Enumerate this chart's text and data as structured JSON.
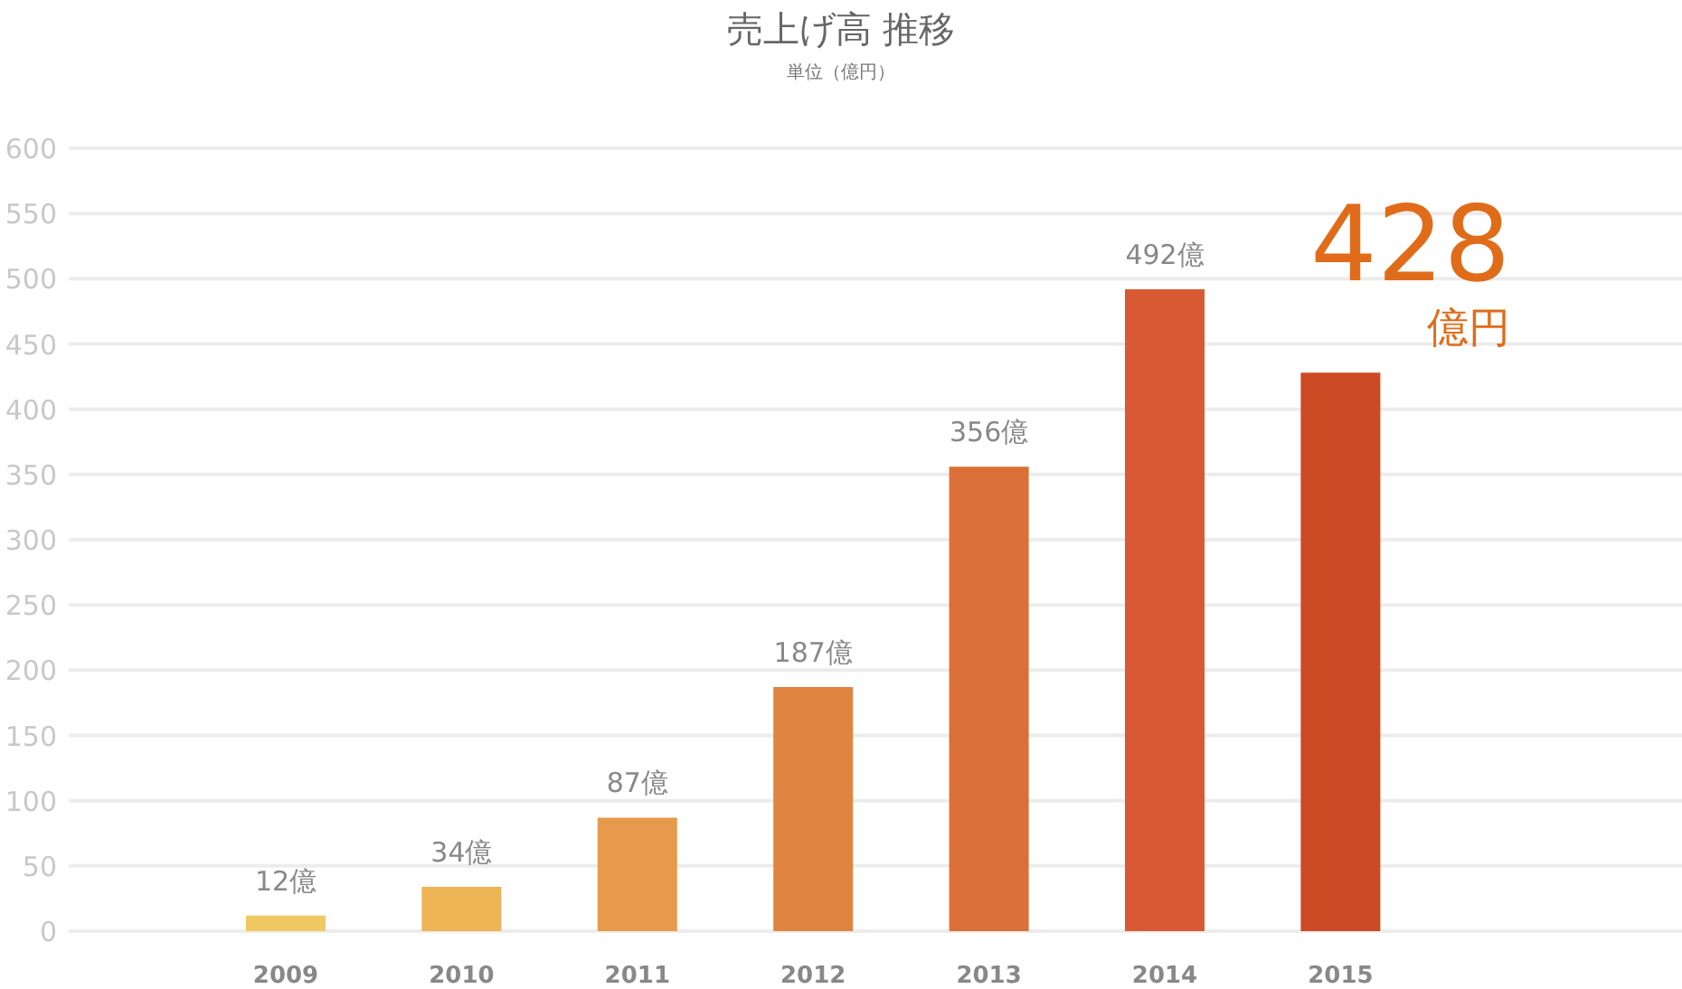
{
  "chart_data": {
    "type": "bar",
    "title": "売上げ高 推移",
    "subtitle": "単位（億円）",
    "categories": [
      "2009",
      "2010",
      "2011",
      "2012",
      "2013",
      "2014",
      "2015"
    ],
    "values": [
      12,
      34,
      87,
      187,
      356,
      492,
      428
    ],
    "colors": [
      "#f0c862",
      "#ecb455",
      "#e79a4c",
      "#e08441",
      "#da7037",
      "#d85a32",
      "#cc4a23"
    ],
    "value_labels": [
      "12億",
      "34億",
      "87億",
      "187億",
      "356億",
      "492億",
      "428億円"
    ],
    "ylim": [
      0,
      600
    ],
    "yticks": [
      0,
      50,
      100,
      150,
      200,
      250,
      300,
      350,
      400,
      450,
      500,
      550,
      600
    ],
    "grid": "y"
  }
}
